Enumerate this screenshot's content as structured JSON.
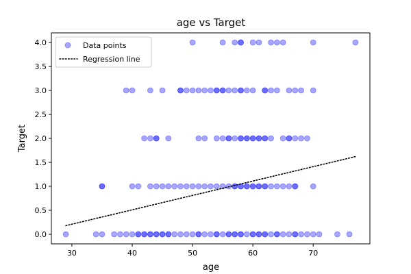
{
  "chart_data": {
    "type": "scatter",
    "title": "age vs Target",
    "xlabel": "age",
    "ylabel": "Target",
    "xlim": [
      26.6,
      79.4
    ],
    "ylim": [
      -0.2,
      4.2
    ],
    "xticks": [
      30,
      40,
      50,
      60,
      70
    ],
    "yticks": [
      0.0,
      0.5,
      1.0,
      1.5,
      2.0,
      2.5,
      3.0,
      3.5,
      4.0
    ],
    "grid": false,
    "legend": {
      "placement": "top-left",
      "entries": [
        "Data points",
        "Regression line"
      ]
    },
    "series": [
      {
        "name": "Data points",
        "kind": "scatter",
        "color": "#0000ff",
        "alpha": 0.35,
        "points": [
          {
            "x": 29,
            "y": 0
          },
          {
            "x": 34,
            "y": 0
          },
          {
            "x": 35,
            "y": 0
          },
          {
            "x": 37,
            "y": 0
          },
          {
            "x": 38,
            "y": 0
          },
          {
            "x": 39,
            "y": 0
          },
          {
            "x": 40,
            "y": 0
          },
          {
            "x": 41,
            "y": 0
          },
          {
            "x": 41,
            "y": 0
          },
          {
            "x": 42,
            "y": 0
          },
          {
            "x": 42,
            "y": 0
          },
          {
            "x": 43,
            "y": 0
          },
          {
            "x": 43,
            "y": 0
          },
          {
            "x": 44,
            "y": 0
          },
          {
            "x": 44,
            "y": 0
          },
          {
            "x": 45,
            "y": 0
          },
          {
            "x": 45,
            "y": 0
          },
          {
            "x": 46,
            "y": 0
          },
          {
            "x": 46,
            "y": 0
          },
          {
            "x": 47,
            "y": 0
          },
          {
            "x": 48,
            "y": 0
          },
          {
            "x": 49,
            "y": 0
          },
          {
            "x": 50,
            "y": 0
          },
          {
            "x": 51,
            "y": 0
          },
          {
            "x": 51,
            "y": 0
          },
          {
            "x": 52,
            "y": 0
          },
          {
            "x": 53,
            "y": 0
          },
          {
            "x": 54,
            "y": 0
          },
          {
            "x": 54,
            "y": 0
          },
          {
            "x": 55,
            "y": 0
          },
          {
            "x": 56,
            "y": 0
          },
          {
            "x": 56,
            "y": 0
          },
          {
            "x": 57,
            "y": 0
          },
          {
            "x": 57,
            "y": 0
          },
          {
            "x": 58,
            "y": 0
          },
          {
            "x": 58,
            "y": 0
          },
          {
            "x": 59,
            "y": 0
          },
          {
            "x": 60,
            "y": 0
          },
          {
            "x": 60,
            "y": 0
          },
          {
            "x": 61,
            "y": 0
          },
          {
            "x": 61,
            "y": 0
          },
          {
            "x": 62,
            "y": 0
          },
          {
            "x": 62,
            "y": 0
          },
          {
            "x": 63,
            "y": 0
          },
          {
            "x": 64,
            "y": 0
          },
          {
            "x": 64,
            "y": 0
          },
          {
            "x": 65,
            "y": 0
          },
          {
            "x": 66,
            "y": 0
          },
          {
            "x": 67,
            "y": 0
          },
          {
            "x": 67,
            "y": 0
          },
          {
            "x": 68,
            "y": 0
          },
          {
            "x": 69,
            "y": 0
          },
          {
            "x": 70,
            "y": 0
          },
          {
            "x": 71,
            "y": 0
          },
          {
            "x": 74,
            "y": 0
          },
          {
            "x": 76,
            "y": 0
          },
          {
            "x": 35,
            "y": 1
          },
          {
            "x": 35,
            "y": 1
          },
          {
            "x": 40,
            "y": 1
          },
          {
            "x": 41,
            "y": 1
          },
          {
            "x": 43,
            "y": 1
          },
          {
            "x": 44,
            "y": 1
          },
          {
            "x": 45,
            "y": 1
          },
          {
            "x": 46,
            "y": 1
          },
          {
            "x": 47,
            "y": 1
          },
          {
            "x": 48,
            "y": 1
          },
          {
            "x": 49,
            "y": 1
          },
          {
            "x": 50,
            "y": 1
          },
          {
            "x": 51,
            "y": 1
          },
          {
            "x": 52,
            "y": 1
          },
          {
            "x": 53,
            "y": 1
          },
          {
            "x": 54,
            "y": 1
          },
          {
            "x": 55,
            "y": 1
          },
          {
            "x": 56,
            "y": 1
          },
          {
            "x": 57,
            "y": 1
          },
          {
            "x": 57,
            "y": 1
          },
          {
            "x": 58,
            "y": 1
          },
          {
            "x": 58,
            "y": 1
          },
          {
            "x": 59,
            "y": 1
          },
          {
            "x": 59,
            "y": 1
          },
          {
            "x": 60,
            "y": 1
          },
          {
            "x": 60,
            "y": 1
          },
          {
            "x": 61,
            "y": 1
          },
          {
            "x": 61,
            "y": 1
          },
          {
            "x": 62,
            "y": 1
          },
          {
            "x": 62,
            "y": 1
          },
          {
            "x": 63,
            "y": 1
          },
          {
            "x": 64,
            "y": 1
          },
          {
            "x": 65,
            "y": 1
          },
          {
            "x": 66,
            "y": 1
          },
          {
            "x": 67,
            "y": 1
          },
          {
            "x": 67,
            "y": 1
          },
          {
            "x": 70,
            "y": 1
          },
          {
            "x": 42,
            "y": 2
          },
          {
            "x": 43,
            "y": 2
          },
          {
            "x": 44,
            "y": 2
          },
          {
            "x": 44,
            "y": 2
          },
          {
            "x": 46,
            "y": 2
          },
          {
            "x": 51,
            "y": 2
          },
          {
            "x": 52,
            "y": 2
          },
          {
            "x": 54,
            "y": 2
          },
          {
            "x": 55,
            "y": 2
          },
          {
            "x": 56,
            "y": 2
          },
          {
            "x": 56,
            "y": 2
          },
          {
            "x": 57,
            "y": 2
          },
          {
            "x": 58,
            "y": 2
          },
          {
            "x": 58,
            "y": 2
          },
          {
            "x": 59,
            "y": 2
          },
          {
            "x": 59,
            "y": 2
          },
          {
            "x": 60,
            "y": 2
          },
          {
            "x": 60,
            "y": 2
          },
          {
            "x": 61,
            "y": 2
          },
          {
            "x": 61,
            "y": 2
          },
          {
            "x": 62,
            "y": 2
          },
          {
            "x": 62,
            "y": 2
          },
          {
            "x": 63,
            "y": 2
          },
          {
            "x": 65,
            "y": 2
          },
          {
            "x": 66,
            "y": 2
          },
          {
            "x": 66,
            "y": 2
          },
          {
            "x": 67,
            "y": 2
          },
          {
            "x": 68,
            "y": 2
          },
          {
            "x": 69,
            "y": 2
          },
          {
            "x": 39,
            "y": 3
          },
          {
            "x": 40,
            "y": 3
          },
          {
            "x": 43,
            "y": 3
          },
          {
            "x": 45,
            "y": 3
          },
          {
            "x": 48,
            "y": 3
          },
          {
            "x": 48,
            "y": 3
          },
          {
            "x": 49,
            "y": 3
          },
          {
            "x": 50,
            "y": 3
          },
          {
            "x": 51,
            "y": 3
          },
          {
            "x": 52,
            "y": 3
          },
          {
            "x": 53,
            "y": 3
          },
          {
            "x": 54,
            "y": 3
          },
          {
            "x": 54,
            "y": 3
          },
          {
            "x": 55,
            "y": 3
          },
          {
            "x": 55,
            "y": 3
          },
          {
            "x": 56,
            "y": 3
          },
          {
            "x": 57,
            "y": 3
          },
          {
            "x": 58,
            "y": 3
          },
          {
            "x": 58,
            "y": 3
          },
          {
            "x": 59,
            "y": 3
          },
          {
            "x": 60,
            "y": 3
          },
          {
            "x": 62,
            "y": 3
          },
          {
            "x": 62,
            "y": 3
          },
          {
            "x": 63,
            "y": 3
          },
          {
            "x": 64,
            "y": 3
          },
          {
            "x": 66,
            "y": 3
          },
          {
            "x": 67,
            "y": 3
          },
          {
            "x": 68,
            "y": 3
          },
          {
            "x": 70,
            "y": 3
          },
          {
            "x": 50,
            "y": 4
          },
          {
            "x": 55,
            "y": 4
          },
          {
            "x": 57,
            "y": 4
          },
          {
            "x": 58,
            "y": 4
          },
          {
            "x": 58,
            "y": 4
          },
          {
            "x": 60,
            "y": 4
          },
          {
            "x": 61,
            "y": 4
          },
          {
            "x": 63,
            "y": 4
          },
          {
            "x": 64,
            "y": 4
          },
          {
            "x": 65,
            "y": 4
          },
          {
            "x": 70,
            "y": 4
          },
          {
            "x": 77,
            "y": 4
          }
        ]
      },
      {
        "name": "Regression line",
        "kind": "line",
        "color": "#000000",
        "style": "dotted",
        "points": [
          {
            "x": 29,
            "y": 0.18
          },
          {
            "x": 77,
            "y": 1.62
          }
        ]
      }
    ]
  }
}
